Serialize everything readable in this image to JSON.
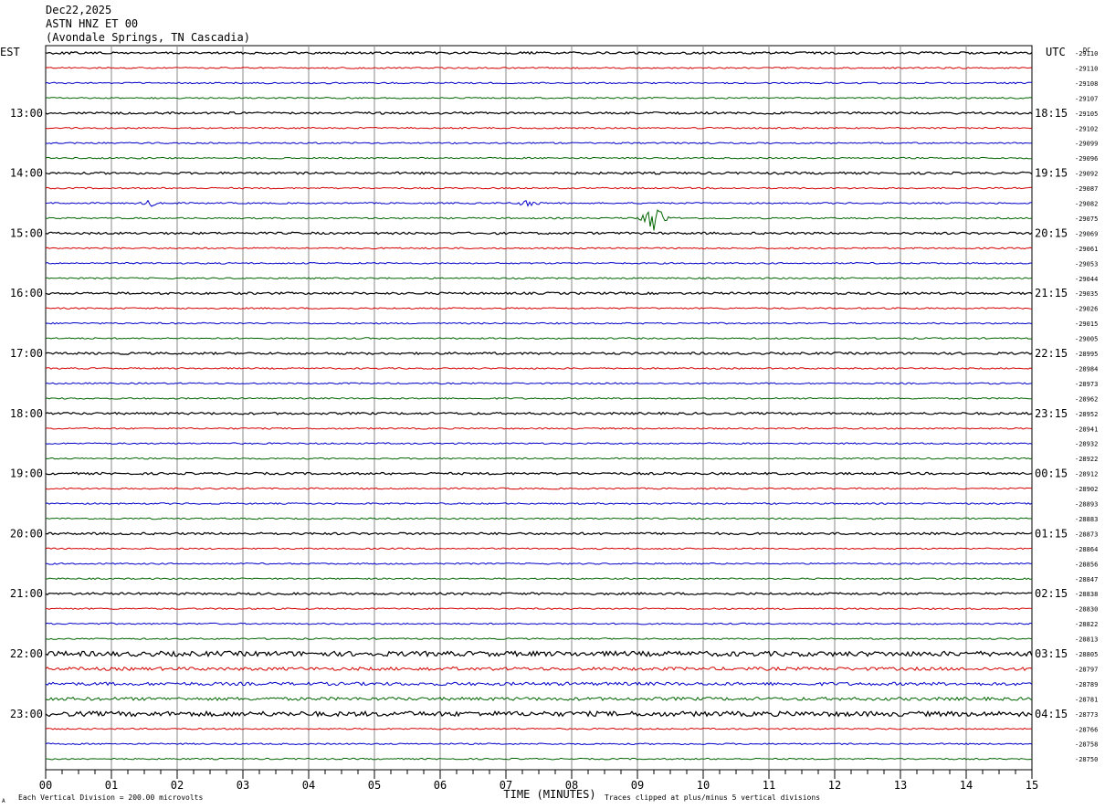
{
  "header": {
    "date": "Dec22,2025",
    "station": "ASTN HNZ ET 00",
    "location": "(Avondale Springs, TN Cascadia)"
  },
  "left_zone": "EST",
  "right_zone": "UTC",
  "dc_label": "DC",
  "footer": {
    "vertical_division": "Each Vertical Division =  200.00 microvolts",
    "clip_note": "Traces clipped at plus/minus 5 vertical divisions",
    "corner_mark": "A"
  },
  "chart_data": {
    "type": "line",
    "xlabel": "TIME (MINUTES)",
    "x_ticks": [
      "00",
      "01",
      "02",
      "03",
      "04",
      "05",
      "06",
      "07",
      "08",
      "09",
      "10",
      "11",
      "12",
      "13",
      "14",
      "15"
    ],
    "xlim": [
      0,
      15
    ],
    "trace_colors": [
      "#000000",
      "#d40000",
      "#0000c8",
      "#006400"
    ],
    "left_hour_labels": [
      "13:00",
      "14:00",
      "15:00",
      "16:00",
      "17:00",
      "18:00",
      "19:00",
      "20:00",
      "21:00",
      "22:00",
      "23:00"
    ],
    "right_hour_labels": [
      "18:15",
      "19:15",
      "20:15",
      "21:15",
      "22:15",
      "23:15",
      "00:15",
      "01:15",
      "02:15",
      "03:15",
      "04:15"
    ],
    "dc_offsets": [
      "-29110",
      "-29110",
      "-29108",
      "-29107",
      "-29105",
      "-29102",
      "-29099",
      "-29096",
      "-29092",
      "-29087",
      "-29082",
      "-29075",
      "-29069",
      "-29061",
      "-29053",
      "-29044",
      "-29035",
      "-29026",
      "-29015",
      "-29005",
      "-28995",
      "-28984",
      "-28973",
      "-28962",
      "-28952",
      "-28941",
      "-28932",
      "-28922",
      "-28912",
      "-28902",
      "-28893",
      "-28883",
      "-28873",
      "-28864",
      "-28856",
      "-28847",
      "-28838",
      "-28830",
      "-28822",
      "-28813",
      "-28805",
      "-28797",
      "-28789",
      "-28781",
      "-28773",
      "-28766",
      "-28758",
      "-28750"
    ],
    "events": [
      {
        "trace_index": 11,
        "minute": 9.25,
        "note": "largest spike"
      },
      {
        "trace_index": 41,
        "minute": 6.15
      },
      {
        "trace_index": 10,
        "minute": 1.6
      },
      {
        "trace_index": 10,
        "minute": 7.35
      }
    ]
  }
}
